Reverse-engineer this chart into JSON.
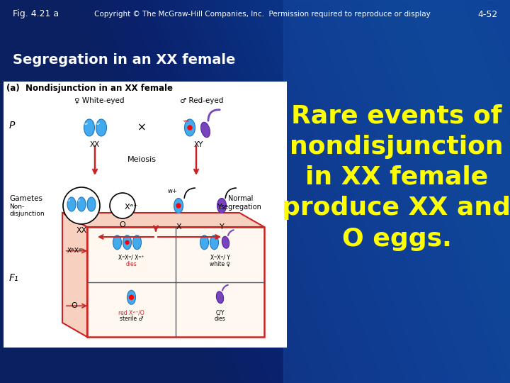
{
  "main_text_lines": [
    "Rare events of",
    "nondisjunction",
    "in XX female",
    "produce XX and",
    "O eggs."
  ],
  "main_text_color": "#ffff00",
  "main_text_fontsize": 26,
  "subtitle_text": "Segregation in an XX female",
  "subtitle_color": "#ffffff",
  "subtitle_fontsize": 14,
  "subtitle_bold": true,
  "fig_label": "Fig. 4.21 a",
  "fig_label_color": "#ffffff",
  "fig_label_fontsize": 9,
  "copyright_text": "Copyright © The McGraw-Hill Companies, Inc.  Permission required to reproduce or display",
  "copyright_color": "#ffffff",
  "copyright_fontsize": 7.5,
  "page_number": "4-52",
  "page_number_color": "#ffffff",
  "page_number_fontsize": 9,
  "bg_dark": "#0a2060",
  "bg_mid": "#1040a0",
  "bg_right": "#1858b8",
  "panel_label": "(a)  Nondisjunction in an XX female",
  "chrom_blue": "#44aaee",
  "chrom_purple": "#7744bb",
  "arrow_red": "#cc2222"
}
